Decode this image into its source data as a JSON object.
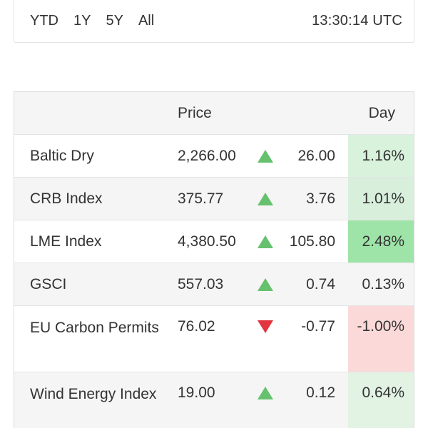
{
  "range_bar": {
    "buttons": [
      "YTD",
      "1Y",
      "5Y",
      "All"
    ],
    "clock": "13:30:14 UTC"
  },
  "table": {
    "headers": {
      "price": "Price",
      "day": "Day"
    },
    "rows": [
      {
        "name": "Baltic Dry",
        "price": "2,266.00",
        "direction": "up",
        "change": "26.00",
        "day": "1.16%",
        "day_bg": "#d8f2dc"
      },
      {
        "name": "CRB Index",
        "price": "375.77",
        "direction": "up",
        "change": "3.76",
        "day": "1.01%",
        "day_bg": "#d7efdb"
      },
      {
        "name": "LME Index",
        "price": "4,380.50",
        "direction": "up",
        "change": "105.80",
        "day": "2.48%",
        "day_bg": "#9ee4a8"
      },
      {
        "name": "GSCI",
        "price": "557.03",
        "direction": "up",
        "change": "0.74",
        "day": "0.13%",
        "day_bg": "#f5f5f5"
      },
      {
        "name": "EU Carbon Permits",
        "price": "76.02",
        "direction": "down",
        "change": "-0.77",
        "day": "-1.00%",
        "day_bg": "#fcd9d9"
      },
      {
        "name": "Wind Energy Index",
        "price": "19.00",
        "direction": "up",
        "change": "0.12",
        "day": "0.64%",
        "day_bg": "#e2f3e4"
      }
    ]
  },
  "colors": {
    "up": "#66c16e",
    "down": "#e2353f"
  }
}
